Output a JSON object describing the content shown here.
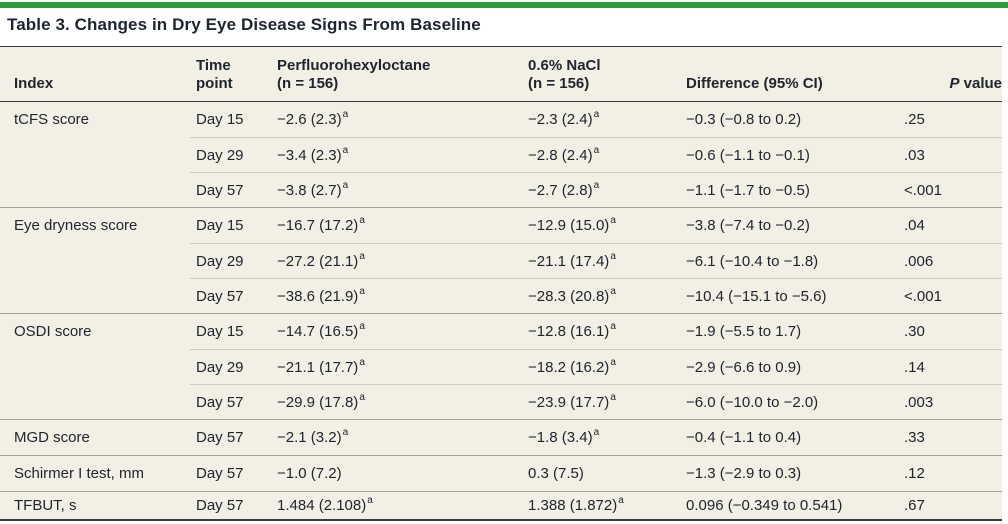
{
  "accent_color": "#2F9B41",
  "background_color": "#F2EFE4",
  "title": "Table 3. Changes in Dry Eye Disease Signs From Baseline",
  "table": {
    "headers": {
      "index": "Index",
      "time_line1": "Time",
      "time_line2": "point",
      "drug_line1": "Perfluorohexyloctane",
      "drug_line2": "(n = 156)",
      "nacl_line1": "0.6% NaCl",
      "nacl_line2": "(n = 156)",
      "difference": "Difference (95% CI)",
      "p_italic": "P",
      "p_rest": " value"
    },
    "groups": [
      {
        "index": "tCFS score",
        "rows": [
          {
            "time": "Day 15",
            "drug": "−2.6 (2.3)",
            "drug_sup": "a",
            "nacl": "−2.3 (2.4)",
            "nacl_sup": "a",
            "diff": "−0.3 (−0.8 to 0.2)",
            "p": ".25"
          },
          {
            "time": "Day 29",
            "drug": "−3.4 (2.3)",
            "drug_sup": "a",
            "nacl": "−2.8 (2.4)",
            "nacl_sup": "a",
            "diff": "−0.6 (−1.1 to −0.1)",
            "p": ".03"
          },
          {
            "time": "Day 57",
            "drug": "−3.8 (2.7)",
            "drug_sup": "a",
            "nacl": "−2.7 (2.8)",
            "nacl_sup": "a",
            "diff": "−1.1 (−1.7 to −0.5)",
            "p": "<.001"
          }
        ]
      },
      {
        "index": "Eye dryness score",
        "rows": [
          {
            "time": "Day 15",
            "drug": "−16.7 (17.2)",
            "drug_sup": "a",
            "nacl": "−12.9 (15.0)",
            "nacl_sup": "a",
            "diff": "−3.8 (−7.4 to −0.2)",
            "p": ".04"
          },
          {
            "time": "Day 29",
            "drug": "−27.2 (21.1)",
            "drug_sup": "a",
            "nacl": "−21.1 (17.4)",
            "nacl_sup": "a",
            "diff": "−6.1 (−10.4 to −1.8)",
            "p": ".006"
          },
          {
            "time": "Day 57",
            "drug": "−38.6 (21.9)",
            "drug_sup": "a",
            "nacl": "−28.3 (20.8)",
            "nacl_sup": "a",
            "diff": "−10.4 (−15.1 to −5.6)",
            "p": "<.001"
          }
        ]
      },
      {
        "index": "OSDI score",
        "rows": [
          {
            "time": "Day 15",
            "drug": "−14.7 (16.5)",
            "drug_sup": "a",
            "nacl": "−12.8 (16.1)",
            "nacl_sup": "a",
            "diff": "−1.9 (−5.5 to 1.7)",
            "p": ".30"
          },
          {
            "time": "Day 29",
            "drug": "−21.1 (17.7)",
            "drug_sup": "a",
            "nacl": "−18.2 (16.2)",
            "nacl_sup": "a",
            "diff": "−2.9 (−6.6 to 0.9)",
            "p": ".14"
          },
          {
            "time": "Day 57",
            "drug": "−29.9 (17.8)",
            "drug_sup": "a",
            "nacl": "−23.9 (17.7)",
            "nacl_sup": "a",
            "diff": "−6.0 (−10.0 to −2.0)",
            "p": ".003"
          }
        ]
      },
      {
        "index": "MGD score",
        "rows": [
          {
            "time": "Day 57",
            "drug": "−2.1 (3.2)",
            "drug_sup": "a",
            "nacl": "−1.8 (3.4)",
            "nacl_sup": "a",
            "diff": "−0.4 (−1.1 to 0.4)",
            "p": ".33"
          }
        ]
      },
      {
        "index": "Schirmer I test, mm",
        "rows": [
          {
            "time": "Day 57",
            "drug": "−1.0 (7.2)",
            "drug_sup": "",
            "nacl": "0.3 (7.5)",
            "nacl_sup": "",
            "diff": "−1.3 (−2.9 to 0.3)",
            "p": ".12"
          }
        ]
      },
      {
        "index": "TFBUT, s",
        "rows": [
          {
            "time": "Day 57",
            "drug": "1.484 (2.108)",
            "drug_sup": "a",
            "nacl": "1.388 (1.872)",
            "nacl_sup": "a",
            "diff": "0.096 (−0.349 to 0.541)",
            "p": ".67"
          }
        ]
      }
    ]
  }
}
